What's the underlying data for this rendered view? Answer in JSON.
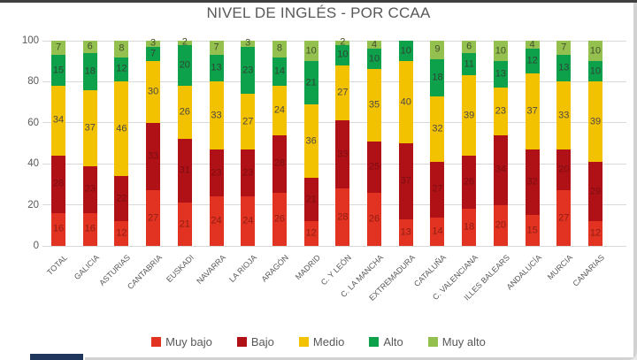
{
  "title": "NIVEL DE INGLÉS - POR CCAA",
  "chart_data": {
    "type": "bar",
    "stacked": true,
    "title": "NIVEL DE INGLÉS - POR CCAA",
    "categories": [
      "TOTAL",
      "GALICIA",
      "ASTURIAS",
      "CANTABRIA",
      "EUSKADI",
      "NAVARRA",
      "LA RIOJA",
      "ARAGÓN",
      "MADRID",
      "C. Y LEÓN",
      "C. LA MANCHA",
      "EXTREMADURA",
      "CATALUÑA",
      "C. VALENCIANA",
      "ILLES BALEARS",
      "ANDALUCÍA",
      "MURCIA",
      "CANARIAS"
    ],
    "series": [
      {
        "name": "Muy bajo",
        "color": "#e23222",
        "label_color": "#8f1d12",
        "values": [
          16,
          16,
          12,
          27,
          21,
          24,
          24,
          26,
          12,
          28,
          26,
          13,
          14,
          18,
          20,
          15,
          27,
          12
        ]
      },
      {
        "name": "Bajo",
        "color": "#b01116",
        "label_color": "#7c0d11",
        "values": [
          28,
          23,
          22,
          33,
          31,
          23,
          23,
          28,
          21,
          33,
          25,
          37,
          27,
          26,
          34,
          32,
          20,
          29
        ]
      },
      {
        "name": "Medio",
        "color": "#f2c100",
        "label_color": "#4e4a42",
        "values": [
          34,
          37,
          46,
          30,
          26,
          33,
          27,
          24,
          36,
          27,
          35,
          40,
          32,
          39,
          23,
          37,
          33,
          39
        ]
      },
      {
        "name": "Alto",
        "color": "#0da14b",
        "label_color": "#2f4434",
        "values": [
          15,
          18,
          12,
          7,
          20,
          13,
          23,
          14,
          21,
          10,
          10,
          10,
          18,
          11,
          13,
          12,
          13,
          10
        ]
      },
      {
        "name": "Muy alto",
        "color": "#94c04f",
        "label_color": "#44502c",
        "values": [
          7,
          6,
          8,
          3,
          2,
          7,
          3,
          8,
          10,
          2,
          4,
          0,
          9,
          6,
          10,
          4,
          7,
          10
        ]
      }
    ],
    "ylim": [
      0,
      100
    ],
    "yticks": [
      0,
      20,
      40,
      60,
      80,
      100
    ],
    "grid": true,
    "legend_position": "bottom"
  }
}
